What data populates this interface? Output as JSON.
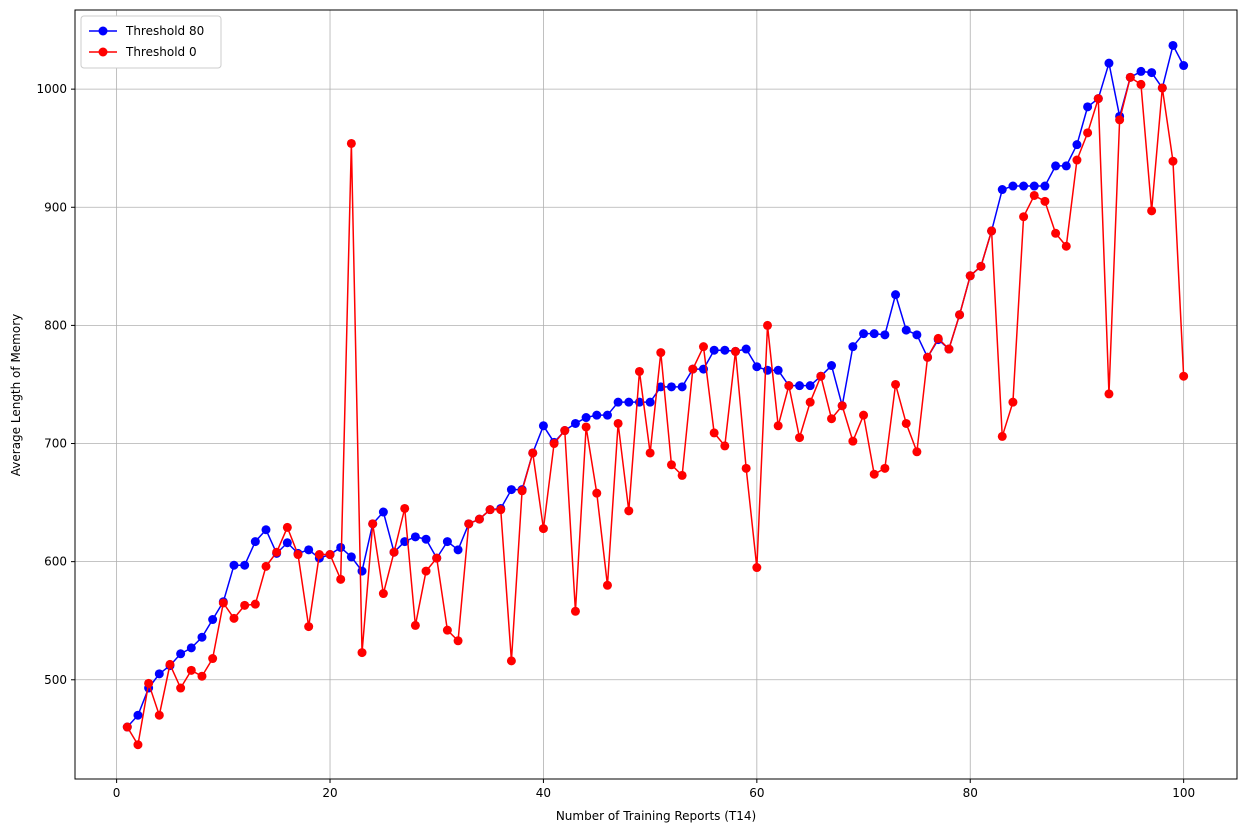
{
  "chart_data": {
    "type": "line",
    "x": [
      1,
      2,
      3,
      4,
      5,
      6,
      7,
      8,
      9,
      10,
      11,
      12,
      13,
      14,
      15,
      16,
      17,
      18,
      19,
      20,
      21,
      22,
      23,
      24,
      25,
      26,
      27,
      28,
      29,
      30,
      31,
      32,
      33,
      34,
      35,
      36,
      37,
      38,
      39,
      40,
      41,
      42,
      43,
      44,
      45,
      46,
      47,
      48,
      49,
      50,
      51,
      52,
      53,
      54,
      55,
      56,
      57,
      58,
      59,
      60,
      61,
      62,
      63,
      64,
      65,
      66,
      67,
      68,
      69,
      70,
      71,
      72,
      73,
      74,
      75,
      76,
      77,
      78,
      79,
      80,
      81,
      82,
      83,
      84,
      85,
      86,
      87,
      88,
      89,
      90,
      91,
      92,
      93,
      94,
      95,
      96,
      97,
      98,
      99,
      100
    ],
    "series": [
      {
        "name": "Threshold 80",
        "color": "#0000ff",
        "values": [
          460,
          470,
          493,
          505,
          512,
          522,
          527,
          536,
          551,
          566,
          597,
          597,
          617,
          627,
          607,
          616,
          607,
          610,
          603,
          606,
          612,
          604,
          592,
          632,
          642,
          608,
          617,
          621,
          619,
          603,
          617,
          610,
          632,
          636,
          644,
          645,
          661,
          661,
          692,
          715,
          701,
          711,
          717,
          722,
          724,
          724,
          735,
          735,
          735,
          735,
          748,
          748,
          748,
          763,
          763,
          779,
          779,
          778,
          780,
          765,
          762,
          762,
          749,
          749,
          749,
          757,
          766,
          732,
          782,
          793,
          793,
          792,
          826,
          796,
          792,
          773,
          788,
          780,
          809,
          842,
          850,
          880,
          915,
          918,
          918,
          918,
          918,
          935,
          935,
          953,
          985,
          992,
          1022,
          977,
          1010,
          1015,
          1014,
          1001,
          1037,
          1020
        ]
      },
      {
        "name": "Threshold 0",
        "color": "#ff0000",
        "values": [
          460,
          445,
          497,
          470,
          513,
          493,
          508,
          503,
          518,
          565,
          552,
          563,
          564,
          596,
          608,
          629,
          606,
          545,
          606,
          606,
          585,
          954,
          523,
          632,
          573,
          608,
          645,
          546,
          592,
          603,
          542,
          533,
          632,
          636,
          644,
          644,
          516,
          660,
          692,
          628,
          700,
          711,
          558,
          714,
          658,
          580,
          717,
          643,
          761,
          692,
          777,
          682,
          673,
          763,
          782,
          709,
          698,
          778,
          679,
          595,
          800,
          715,
          749,
          705,
          735,
          757,
          721,
          732,
          702,
          724,
          674,
          679,
          750,
          717,
          693,
          773,
          789,
          780,
          809,
          842,
          850,
          880,
          706,
          735,
          892,
          910,
          905,
          878,
          867,
          940,
          963,
          992,
          742,
          974,
          1010,
          1004,
          897,
          1001,
          939,
          757
        ]
      }
    ],
    "xlabel": "Number of Training Reports (T14)",
    "ylabel": "Average Length of Memory",
    "xlim": [
      -3.9,
      105
    ],
    "ylim": [
      416,
      1067
    ],
    "xticks": [
      0,
      20,
      40,
      60,
      80,
      100
    ],
    "yticks": [
      500,
      600,
      700,
      800,
      900,
      1000
    ],
    "grid": true,
    "legend": "upper left"
  }
}
